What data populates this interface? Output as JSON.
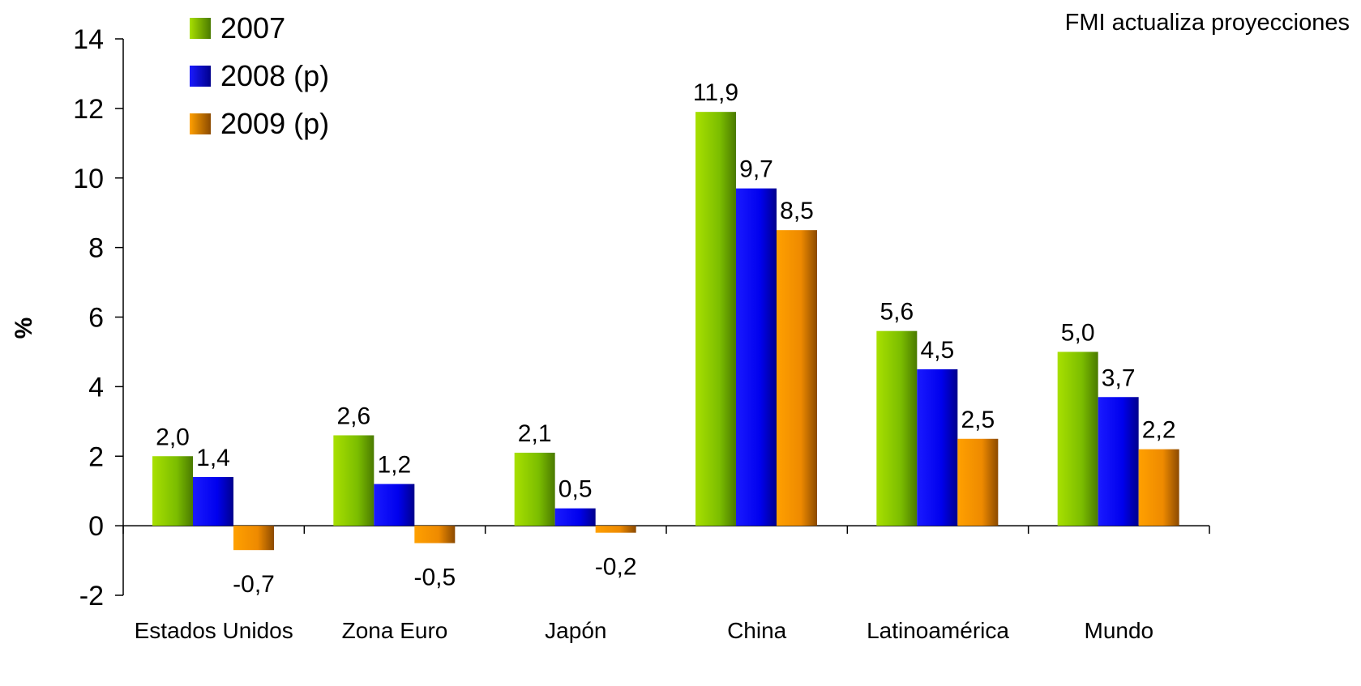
{
  "chart_data": {
    "type": "bar",
    "title": "",
    "subtitle": "FMI actualiza proyecciones",
    "xlabel": "",
    "ylabel": "%",
    "ylim": [
      -2,
      14
    ],
    "yticks": [
      "-2",
      "0",
      "2",
      "4",
      "6",
      "8",
      "10",
      "12",
      "14"
    ],
    "categories": [
      "Estados Unidos",
      "Zona Euro",
      "Japón",
      "China",
      "Latinoamérica",
      "Mundo"
    ],
    "series": [
      {
        "name": "2007",
        "color": "#7bbd00",
        "values": [
          2.0,
          2.6,
          2.1,
          11.9,
          5.6,
          5.0
        ],
        "labels": [
          "2,0",
          "2,6",
          "2,1",
          "11,9",
          "5,6",
          "5,0"
        ]
      },
      {
        "name": "2008 (p)",
        "color": "#0000ee",
        "values": [
          1.4,
          1.2,
          0.5,
          9.7,
          4.5,
          3.7
        ],
        "labels": [
          "1,4",
          "1,2",
          "0,5",
          "9,7",
          "4,5",
          "3,7"
        ]
      },
      {
        "name": "2009 (p)",
        "color": "#ee8a00",
        "values": [
          -0.7,
          -0.5,
          -0.2,
          8.5,
          2.5,
          2.2
        ],
        "labels": [
          "-0,7",
          "-0,5",
          "-0,2",
          "8,5",
          "2,5",
          "2,2"
        ]
      }
    ],
    "legend_position": "top-left",
    "grid": false
  }
}
